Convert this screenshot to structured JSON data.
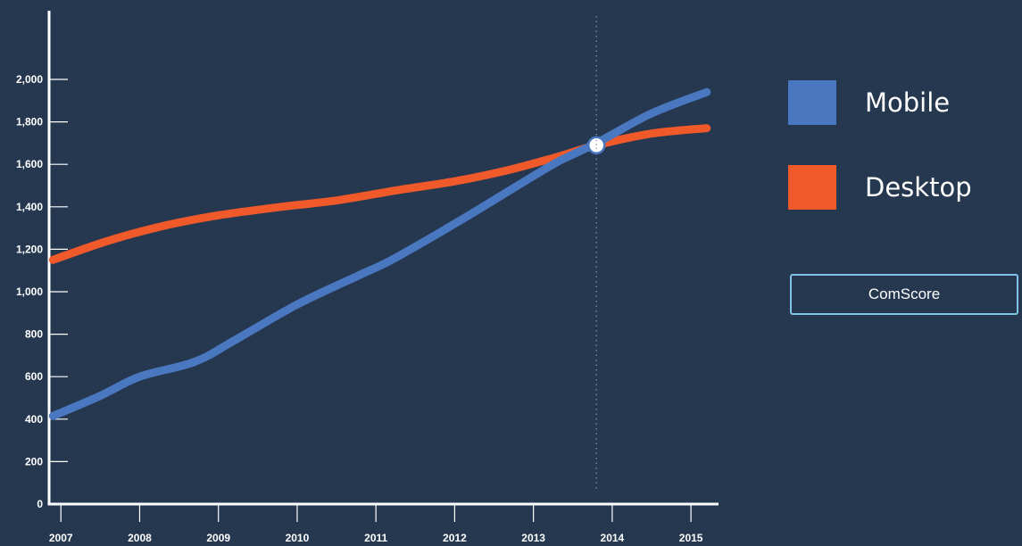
{
  "colors": {
    "background": "#263750",
    "mobile": "#4a78c0",
    "desktop": "#f05a2b",
    "axis": "#ffffff",
    "source_border": "#7fc4e4"
  },
  "legend": {
    "items": [
      {
        "label": "Mobile",
        "color": "#4a78c0"
      },
      {
        "label": "Desktop",
        "color": "#f05a2b"
      }
    ]
  },
  "source": {
    "label": "ComScore"
  },
  "chart_data": {
    "type": "line",
    "title": "",
    "xlabel": "",
    "ylabel": "",
    "grid": false,
    "legend_position": "right",
    "xlim": [
      2006.85,
      2015.35
    ],
    "ylim": [
      0,
      2000
    ],
    "y_ticks": [
      0,
      200,
      400,
      600,
      800,
      1000,
      1200,
      1400,
      1600,
      1800,
      2000
    ],
    "y_tick_labels": [
      "0",
      "200",
      "400",
      "600",
      "800",
      "1,000",
      "1,200",
      "1,400",
      "1,600",
      "1,800",
      "2,000"
    ],
    "x_ticks": [
      2007,
      2008,
      2009,
      2010,
      2011,
      2012,
      2013,
      2014,
      2015
    ],
    "x_tick_labels": [
      "2007",
      "2008",
      "2009",
      "2010",
      "2011",
      "2012",
      "2013",
      "2014",
      "2015"
    ],
    "crossover": {
      "x": 2013.8,
      "y": 1690
    },
    "series": [
      {
        "name": "Mobile",
        "color": "#4a78c0",
        "x": [
          2006.9,
          2007.5,
          2008.0,
          2008.7,
          2009.2,
          2010.0,
          2010.8,
          2011.2,
          2012.0,
          2012.8,
          2013.3,
          2013.8,
          2014.5,
          2015.2
        ],
        "y": [
          415,
          510,
          600,
          670,
          770,
          940,
          1080,
          1150,
          1320,
          1500,
          1610,
          1700,
          1840,
          1940
        ]
      },
      {
        "name": "Desktop",
        "color": "#f05a2b",
        "x": [
          2006.9,
          2007.6,
          2008.3,
          2009.0,
          2009.8,
          2010.5,
          2011.3,
          2012.0,
          2012.7,
          2013.3,
          2013.8,
          2014.5,
          2015.2
        ],
        "y": [
          1150,
          1240,
          1310,
          1360,
          1400,
          1430,
          1480,
          1520,
          1575,
          1635,
          1690,
          1745,
          1770
        ]
      }
    ]
  }
}
